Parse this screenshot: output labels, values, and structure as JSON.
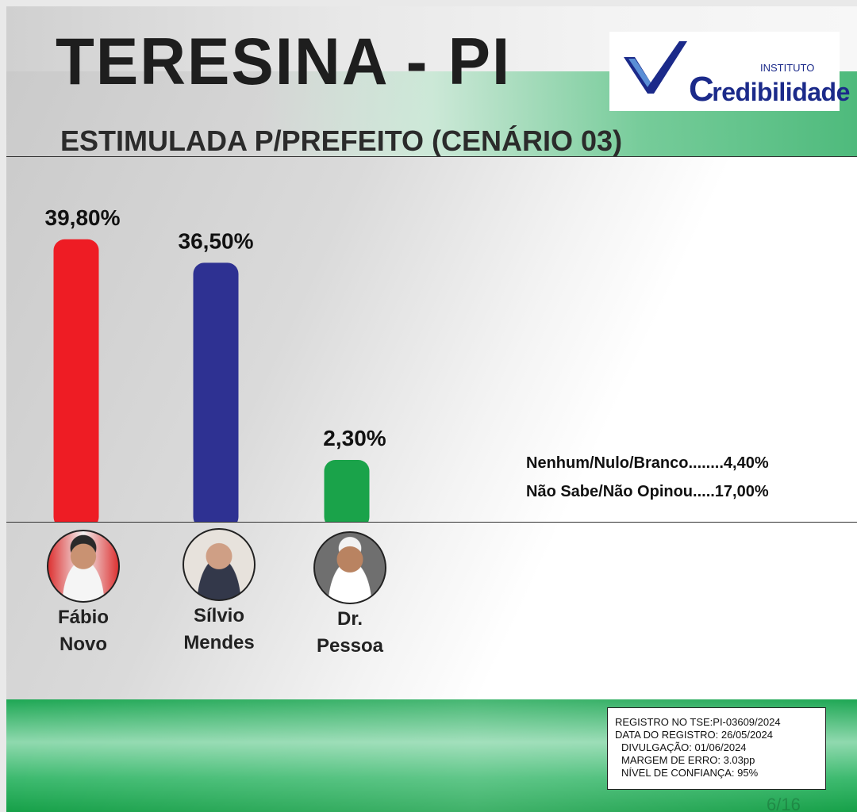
{
  "header": {
    "title": "TERESINA - PI",
    "subtitle": "ESTIMULADA P/PREFEITO (CENÁRIO 03)"
  },
  "logo": {
    "instituto": "INSTITUTO",
    "initial": "C",
    "name_rest": "redibilidade"
  },
  "chart_data": {
    "type": "bar",
    "title": "ESTIMULADA P/PREFEITO (CENÁRIO 03)",
    "categories": [
      "Fábio Novo",
      "Sílvio Mendes",
      "Dr. Pessoa"
    ],
    "values": [
      39.8,
      36.5,
      2.3
    ],
    "value_labels": [
      "39,80%",
      "36,50%",
      "2,30%"
    ],
    "colors": [
      "#ee1c24",
      "#2e3192",
      "#1aa34a"
    ],
    "ylim": [
      0,
      40
    ],
    "grid": false,
    "legend": "none"
  },
  "candidates": [
    {
      "first": "Fábio",
      "last": "Novo"
    },
    {
      "first": "Sílvio",
      "last": "Mendes"
    },
    {
      "first": "Dr.",
      "last": "Pessoa"
    }
  ],
  "others": {
    "line1": "Nenhum/Nulo/Branco........4,40%",
    "line2": "Não Sabe/Não Opinou.....17,00%"
  },
  "registro": {
    "line1": "REGISTRO NO TSE:PI-03609/2024",
    "line2": "DATA DO REGISTRO: 26/05/2024",
    "line3": "DIVULGAÇÃO: 01/06/2024",
    "line4": "MARGEM DE ERRO: 3.03pp",
    "line5": "NÍVEL DE CONFIANÇA: 95%"
  },
  "page": "6/16"
}
